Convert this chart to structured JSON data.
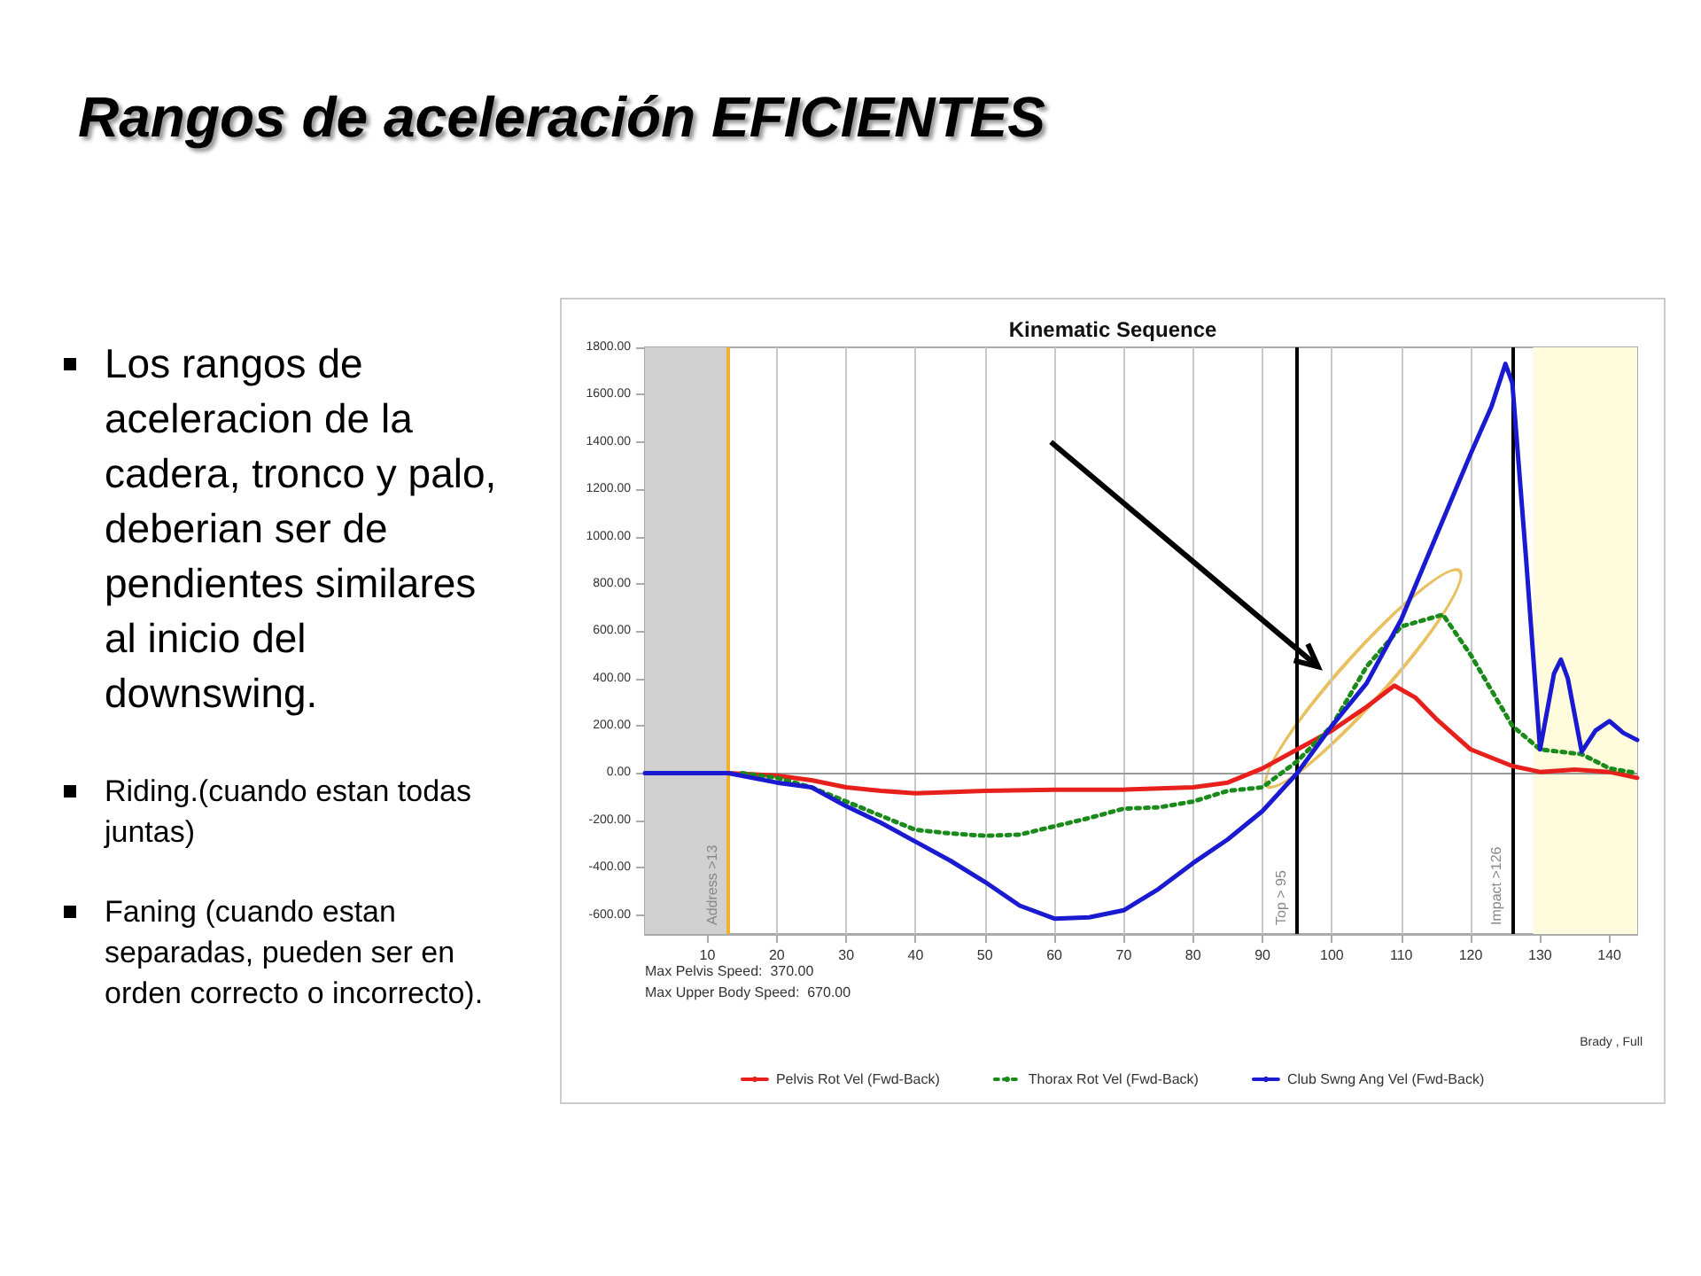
{
  "chart_data": {
    "type": "line",
    "title": "Rangos de aceleración EFICIENTES",
    "subtitle": "Kinematic Sequence",
    "annotations": [
      "Los rangos de aceleracion de la cadera, tronco y palo, deberian ser de pendientes similares al inicio del downswing.",
      "Riding.(cuando estan todas juntas)",
      "Faning (cuando estan separadas, pueden ser en orden correcto o incorrecto).",
      "Max Pelvis Speed:  370.00",
      "Max Upper Body Speed:  670.00",
      "Brady , Full"
    ],
    "series": [
      {
        "name": "Pelvis Rot Vel (Fwd-Back)",
        "color": "#e8201c",
        "line_style": "solid",
        "x": [
          13,
          20,
          25,
          30,
          35,
          40,
          50,
          60,
          70,
          80,
          85,
          90,
          95,
          100,
          105,
          109,
          112,
          115,
          120,
          126,
          130,
          135,
          140,
          144
        ],
        "values": [
          0,
          -10,
          -30,
          -60,
          -75,
          -85,
          -75,
          -70,
          -70,
          -60,
          -40,
          20,
          100,
          180,
          280,
          370,
          320,
          230,
          100,
          30,
          5,
          15,
          5,
          -20
        ]
      },
      {
        "name": "Thorax Rot Vel (Fwd-Back)",
        "color": "#1a8a1a",
        "line_style": "dotted",
        "x": [
          15,
          20,
          25,
          30,
          35,
          40,
          45,
          50,
          55,
          60,
          65,
          70,
          75,
          80,
          85,
          90,
          95,
          100,
          105,
          110,
          116,
          120,
          124,
          126,
          130,
          136,
          140,
          144
        ],
        "values": [
          0,
          -20,
          -60,
          -120,
          -180,
          -240,
          -255,
          -265,
          -260,
          -225,
          -190,
          -150,
          -145,
          -120,
          -75,
          -60,
          50,
          200,
          450,
          620,
          670,
          500,
          300,
          200,
          100,
          80,
          20,
          0
        ]
      },
      {
        "name": "Club Swng Ang Vel (Fwd-Back)",
        "color": "#1a1ad0",
        "line_style": "solid",
        "x": [
          1,
          5,
          10,
          13,
          20,
          25,
          30,
          35,
          40,
          45,
          50,
          55,
          60,
          65,
          70,
          75,
          80,
          85,
          90,
          95,
          100,
          105,
          110,
          115,
          120,
          123,
          125,
          126,
          128,
          130,
          132,
          133,
          134,
          136,
          138,
          140,
          142,
          144
        ],
        "values": [
          0,
          0,
          0,
          0,
          -40,
          -60,
          -140,
          -210,
          -290,
          -370,
          -460,
          -560,
          -615,
          -610,
          -580,
          -490,
          -380,
          -280,
          -160,
          0,
          200,
          380,
          650,
          1000,
          1350,
          1550,
          1730,
          1650,
          900,
          100,
          420,
          480,
          400,
          90,
          180,
          220,
          170,
          140
        ]
      }
    ],
    "xlim": [
      1,
      144
    ],
    "xticks": [
      10,
      20,
      30,
      40,
      50,
      60,
      70,
      80,
      90,
      100,
      110,
      120,
      130,
      140
    ],
    "ylim": [
      -680,
      1800
    ],
    "yticks": [
      {
        "value": -600,
        "label": "-600.00"
      },
      {
        "value": -400,
        "label": "-400.00"
      },
      {
        "value": -200,
        "label": "-200.00"
      },
      {
        "value": 0,
        "label": "0.00"
      },
      {
        "value": 200,
        "label": "200.00"
      },
      {
        "value": 400,
        "label": "400.00"
      },
      {
        "value": 600,
        "label": "600.00"
      },
      {
        "value": 800,
        "label": "800.00"
      },
      {
        "value": 1000,
        "label": "1000.00"
      },
      {
        "value": 1200,
        "label": "1200.00"
      },
      {
        "value": 1400,
        "label": "1400.00"
      },
      {
        "value": 1600,
        "label": "1600.00"
      },
      {
        "value": 1800,
        "label": "1800.00"
      }
    ],
    "ref_lines": [
      {
        "axis": "y",
        "value": 0,
        "color": "#999999"
      },
      {
        "axis": "x",
        "value": 13,
        "label": "Address >13",
        "color": "#f0b030"
      },
      {
        "axis": "x",
        "value": 95,
        "label": "Top > 95",
        "color": "#000000"
      },
      {
        "axis": "x",
        "value": 126,
        "label": "Impact >126",
        "color": "#000000"
      }
    ],
    "bands": [
      {
        "axis": "x",
        "from": 1,
        "to": 13,
        "color": "#d0d0d0"
      },
      {
        "axis": "x",
        "from": 129,
        "to": 144,
        "color": "#fffbdc"
      }
    ],
    "grid": "x",
    "legend": "bottom",
    "marker": "none"
  }
}
